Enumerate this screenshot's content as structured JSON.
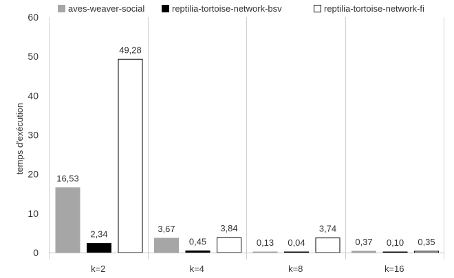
{
  "chart_data": {
    "type": "bar",
    "ylabel": "temps d'exécution",
    "ylim": [
      0,
      60
    ],
    "yticks": [
      0,
      10,
      20,
      30,
      40,
      50,
      60
    ],
    "grid": false,
    "legend_position": "top",
    "value_format": "comma-decimal-2",
    "categories": [
      "k=2",
      "k=4",
      "k=8",
      "k=16"
    ],
    "series": [
      {
        "name": "aves-weaver-social",
        "color": "#a6a6a6",
        "stroke": "#a6a6a6",
        "values": [
          16.53,
          3.67,
          0.13,
          0.37
        ]
      },
      {
        "name": "reptilia-tortoise-network-bsv",
        "color": "#000000",
        "stroke": "#000000",
        "values": [
          2.34,
          0.45,
          0.04,
          0.1
        ]
      },
      {
        "name": "reptilia-tortoise-network-fi",
        "color": "#ffffff",
        "stroke": "#000000",
        "values": [
          49.28,
          3.84,
          3.74,
          0.35
        ]
      }
    ]
  }
}
